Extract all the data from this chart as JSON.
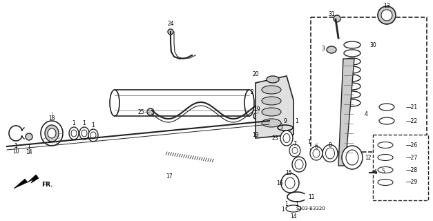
{
  "bg_color": "#ffffff",
  "diagram_code": "S303-B3320",
  "line_color": "#222222",
  "gray_fill": "#cccccc",
  "dark_gray": "#666666"
}
